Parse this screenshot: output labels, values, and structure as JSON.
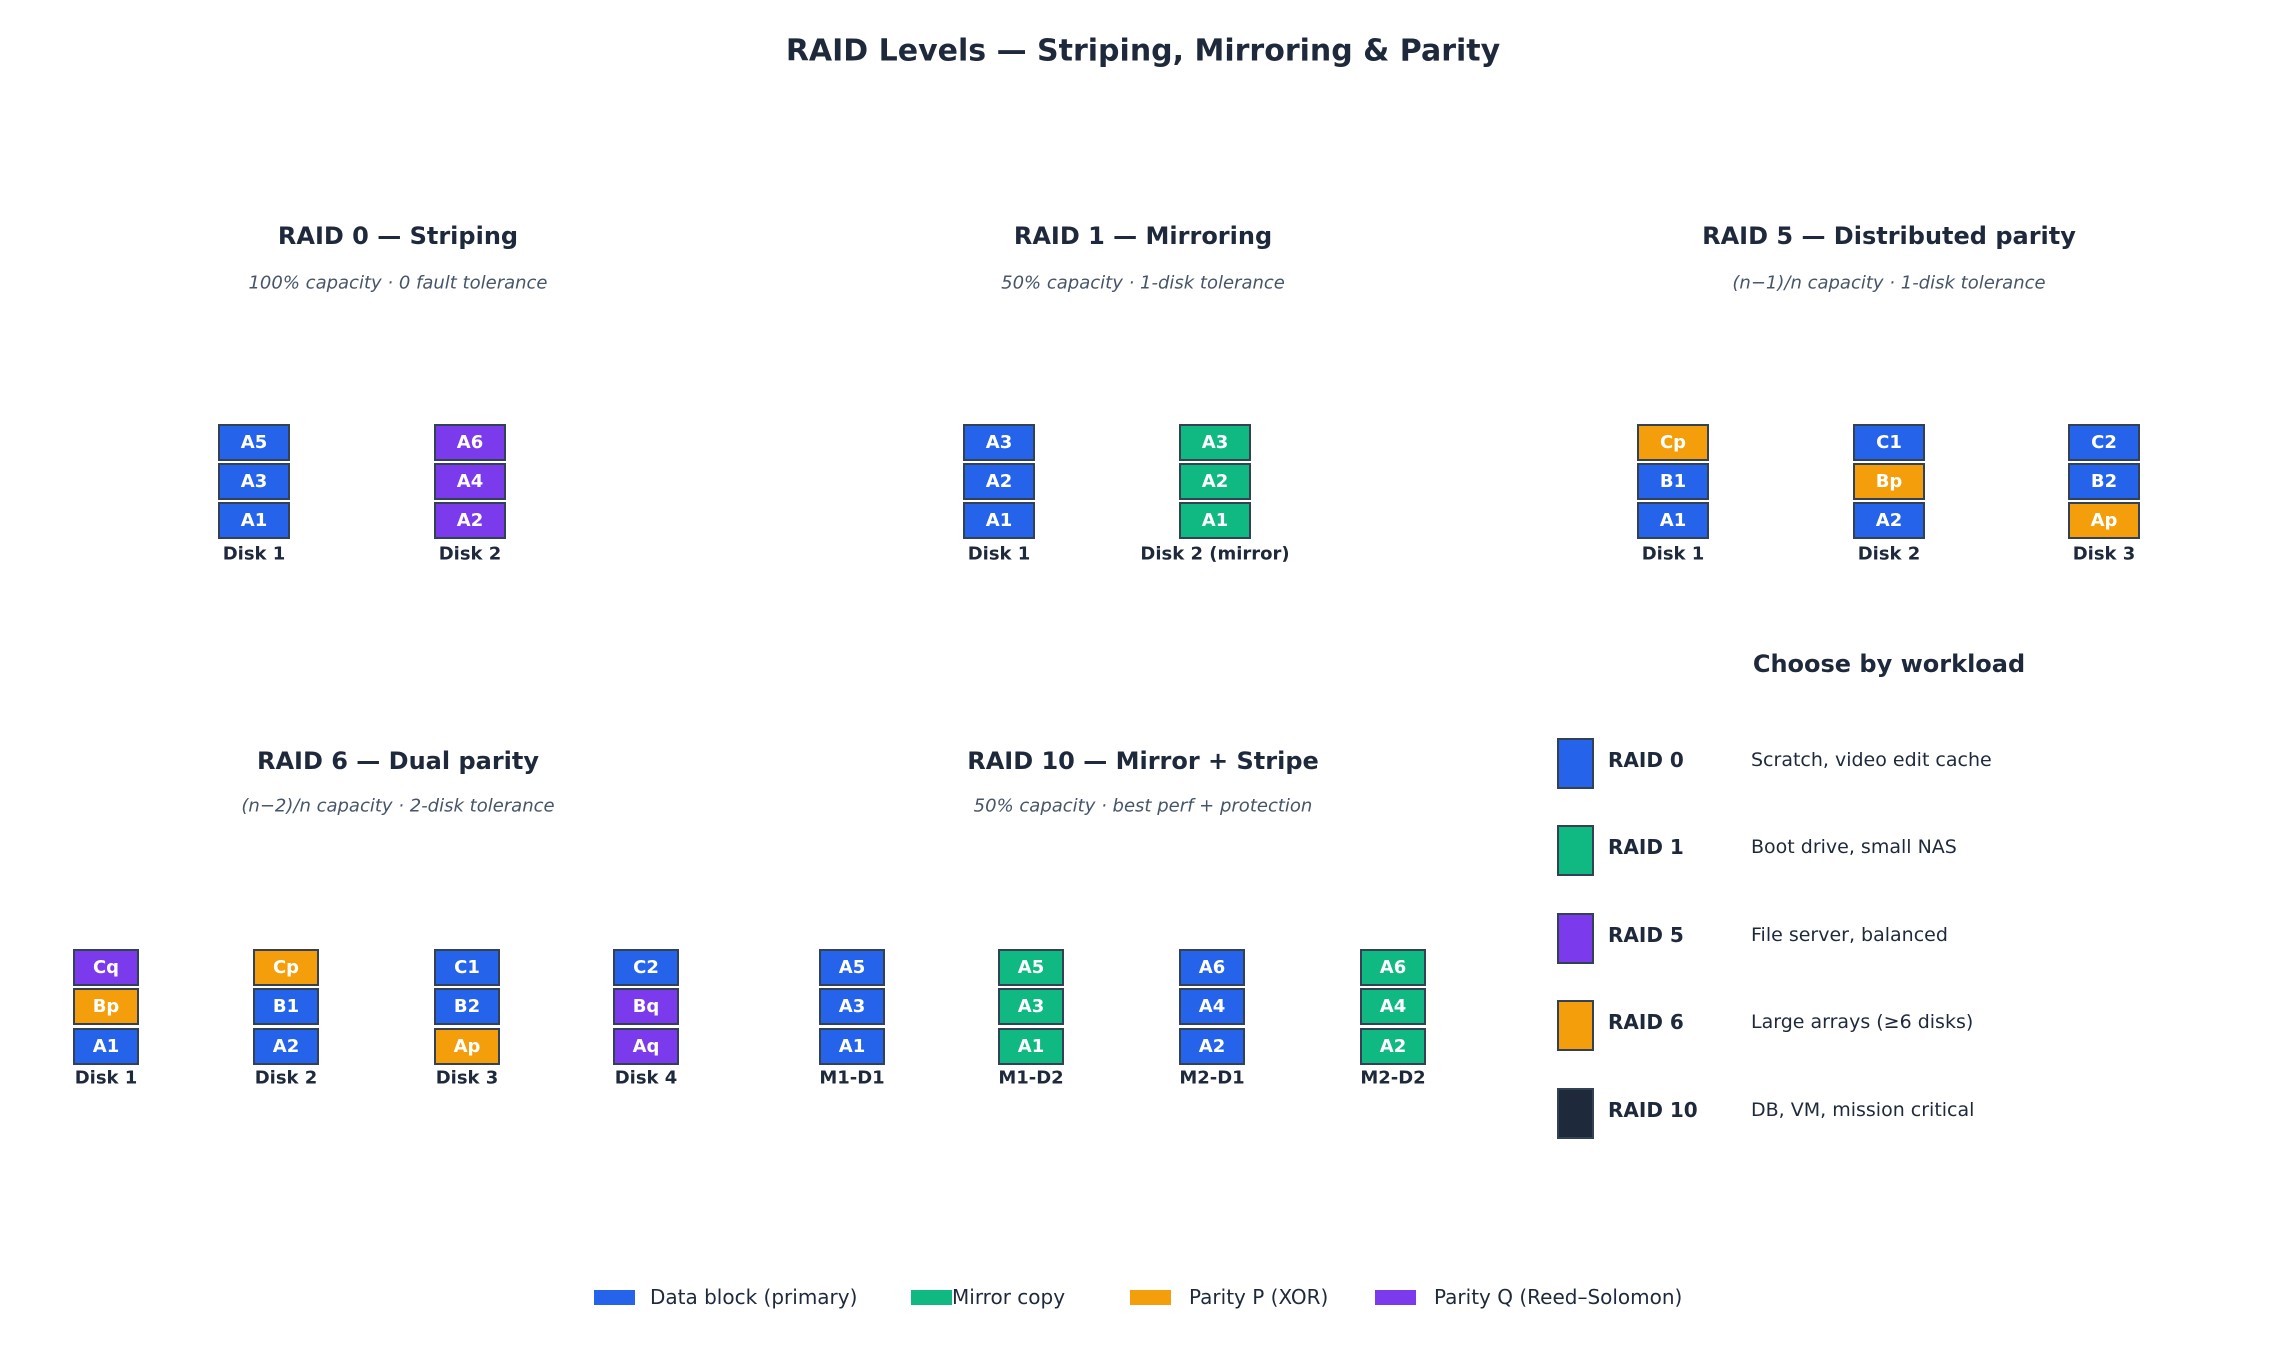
{
  "title": "RAID Levels — Striping, Mirroring & Parity",
  "colors": {
    "data": "#2563eb",
    "mirror": "#10b981",
    "parity_p": "#f59e0b",
    "parity_q": "#7c3aed",
    "dark": "#1e293b"
  },
  "panels": [
    {
      "title": "RAID 0 — Striping",
      "subtitle": "100% capacity · 0 fault tolerance",
      "disks": [
        {
          "label": "Disk 1",
          "blocks": [
            {
              "text": "A5",
              "color": "#2563eb"
            },
            {
              "text": "A3",
              "color": "#2563eb"
            },
            {
              "text": "A1",
              "color": "#2563eb"
            }
          ]
        },
        {
          "label": "Disk 2",
          "blocks": [
            {
              "text": "A6",
              "color": "#7c3aed"
            },
            {
              "text": "A4",
              "color": "#7c3aed"
            },
            {
              "text": "A2",
              "color": "#7c3aed"
            }
          ]
        }
      ]
    },
    {
      "title": "RAID 1 — Mirroring",
      "subtitle": "50% capacity · 1-disk tolerance",
      "disks": [
        {
          "label": "Disk 1",
          "blocks": [
            {
              "text": "A3",
              "color": "#2563eb"
            },
            {
              "text": "A2",
              "color": "#2563eb"
            },
            {
              "text": "A1",
              "color": "#2563eb"
            }
          ]
        },
        {
          "label": "Disk 2 (mirror)",
          "blocks": [
            {
              "text": "A3",
              "color": "#10b981"
            },
            {
              "text": "A2",
              "color": "#10b981"
            },
            {
              "text": "A1",
              "color": "#10b981"
            }
          ]
        }
      ]
    },
    {
      "title": "RAID 5 — Distributed parity",
      "subtitle": "(n−1)/n capacity · 1-disk tolerance",
      "disks": [
        {
          "label": "Disk 1",
          "blocks": [
            {
              "text": "Cp",
              "color": "#f59e0b"
            },
            {
              "text": "B1",
              "color": "#2563eb"
            },
            {
              "text": "A1",
              "color": "#2563eb"
            }
          ]
        },
        {
          "label": "Disk 2",
          "blocks": [
            {
              "text": "C1",
              "color": "#2563eb"
            },
            {
              "text": "Bp",
              "color": "#f59e0b"
            },
            {
              "text": "A2",
              "color": "#2563eb"
            }
          ]
        },
        {
          "label": "Disk 3",
          "blocks": [
            {
              "text": "C2",
              "color": "#2563eb"
            },
            {
              "text": "B2",
              "color": "#2563eb"
            },
            {
              "text": "Ap",
              "color": "#f59e0b"
            }
          ]
        }
      ]
    },
    {
      "title": "RAID 6 — Dual parity",
      "subtitle": "(n−2)/n capacity · 2-disk tolerance",
      "disks": [
        {
          "label": "Disk 1",
          "blocks": [
            {
              "text": "Cq",
              "color": "#7c3aed"
            },
            {
              "text": "Bp",
              "color": "#f59e0b"
            },
            {
              "text": "A1",
              "color": "#2563eb"
            }
          ]
        },
        {
          "label": "Disk 2",
          "blocks": [
            {
              "text": "Cp",
              "color": "#f59e0b"
            },
            {
              "text": "B1",
              "color": "#2563eb"
            },
            {
              "text": "A2",
              "color": "#2563eb"
            }
          ]
        },
        {
          "label": "Disk 3",
          "blocks": [
            {
              "text": "C1",
              "color": "#2563eb"
            },
            {
              "text": "B2",
              "color": "#2563eb"
            },
            {
              "text": "Ap",
              "color": "#f59e0b"
            }
          ]
        },
        {
          "label": "Disk 4",
          "blocks": [
            {
              "text": "C2",
              "color": "#2563eb"
            },
            {
              "text": "Bq",
              "color": "#7c3aed"
            },
            {
              "text": "Aq",
              "color": "#7c3aed"
            }
          ]
        }
      ]
    },
    {
      "title": "RAID 10 — Mirror + Stripe",
      "subtitle": "50% capacity · best perf + protection",
      "disks": [
        {
          "label": "M1-D1",
          "blocks": [
            {
              "text": "A5",
              "color": "#2563eb"
            },
            {
              "text": "A3",
              "color": "#2563eb"
            },
            {
              "text": "A1",
              "color": "#2563eb"
            }
          ]
        },
        {
          "label": "M1-D2",
          "blocks": [
            {
              "text": "A5",
              "color": "#10b981"
            },
            {
              "text": "A3",
              "color": "#10b981"
            },
            {
              "text": "A1",
              "color": "#10b981"
            }
          ]
        },
        {
          "label": "M2-D1",
          "blocks": [
            {
              "text": "A6",
              "color": "#2563eb"
            },
            {
              "text": "A4",
              "color": "#2563eb"
            },
            {
              "text": "A2",
              "color": "#2563eb"
            }
          ]
        },
        {
          "label": "M2-D2",
          "blocks": [
            {
              "text": "A6",
              "color": "#10b981"
            },
            {
              "text": "A4",
              "color": "#10b981"
            },
            {
              "text": "A2",
              "color": "#10b981"
            }
          ]
        }
      ]
    }
  ],
  "workload": {
    "title": "Choose by workload",
    "items": [
      {
        "label": "RAID 0",
        "desc": "Scratch, video edit cache",
        "color": "#2563eb"
      },
      {
        "label": "RAID 1",
        "desc": "Boot drive, small NAS",
        "color": "#10b981"
      },
      {
        "label": "RAID 5",
        "desc": "File server, balanced",
        "color": "#7c3aed"
      },
      {
        "label": "RAID 6",
        "desc": "Large arrays (≥6 disks)",
        "color": "#f59e0b"
      },
      {
        "label": "RAID 10",
        "desc": "DB, VM, mission critical",
        "color": "#1e293b"
      }
    ]
  },
  "legend": [
    {
      "label": "Data block (primary)",
      "color": "#2563eb"
    },
    {
      "label": "Mirror copy",
      "color": "#10b981"
    },
    {
      "label": "Parity P (XOR)",
      "color": "#f59e0b"
    },
    {
      "label": "Parity Q (Reed–Solomon)",
      "color": "#7c3aed"
    }
  ]
}
